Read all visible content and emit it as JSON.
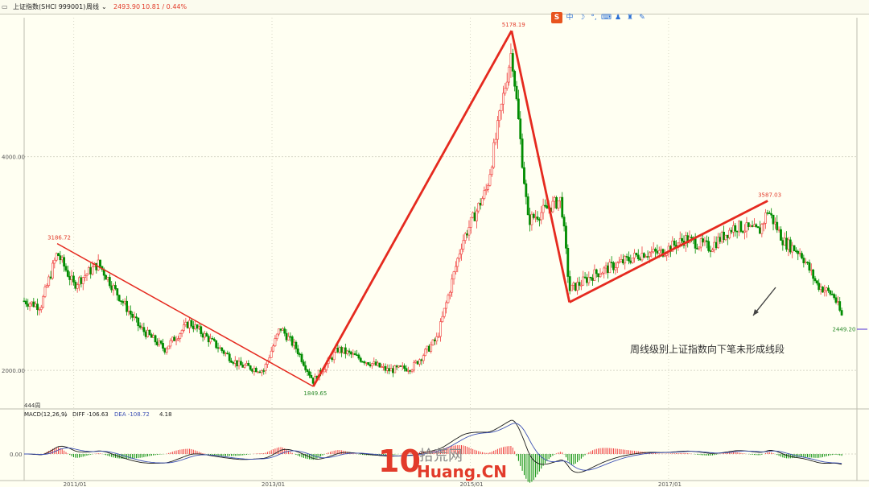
{
  "header": {
    "icon": "window-icon",
    "symbol": "上证指数(SHCI 999001)",
    "period": "周线",
    "last": "2493.90",
    "change": "10.81 / 0.44%"
  },
  "toolbar": {
    "items": [
      {
        "name": "sogou-icon",
        "glyph": "S"
      },
      {
        "name": "chinese-input-icon",
        "glyph": "中"
      },
      {
        "name": "moon-icon",
        "glyph": "☽"
      },
      {
        "name": "punctuation-icon",
        "glyph": "°,"
      },
      {
        "name": "keyboard-icon",
        "glyph": "⌨"
      },
      {
        "name": "user-icon",
        "glyph": "♟"
      },
      {
        "name": "shirt-icon",
        "glyph": "♜"
      },
      {
        "name": "wrench-icon",
        "glyph": "✎"
      }
    ]
  },
  "annotation": "周线级别上证指数向下笔未形成线段",
  "watermark": {
    "number": "10",
    "text1": "拾荒网",
    "text2": "Huang.CN"
  },
  "colors": {
    "up": "#f03c3c",
    "down": "#008c00",
    "stroke": "#e52a1f",
    "diff": "#1a1a1a",
    "dea": "#3c50b4",
    "grid": "#d8d8c8"
  },
  "chart_data": {
    "type": "candlestick",
    "title": "上证指数(SHCI 999001) 周线",
    "x_ticks": [
      "2011/01",
      "2013/01",
      "2015/01",
      "2017/01"
    ],
    "y_ticks": [
      "4000.00",
      "2000.00"
    ],
    "bar_count_label": "444周",
    "extremes": [
      {
        "date": "2010/11",
        "value": "3186.72",
        "type": "high"
      },
      {
        "date": "2013/06",
        "value": "1849.65",
        "type": "low"
      },
      {
        "date": "2015/06",
        "value": "5178.19",
        "type": "high"
      },
      {
        "date": "2016/01",
        "value": null,
        "type": "low"
      },
      {
        "date": "2018/01",
        "value": "3587.03",
        "type": "high"
      },
      {
        "date": "2018/10",
        "value": "2449.20",
        "type": "low"
      }
    ],
    "strokes": [
      {
        "from": "2010/11",
        "to": "2013/06",
        "start": 3186.72,
        "end": 1849.65
      },
      {
        "from": "2013/06",
        "to": "2015/06",
        "start": 1849.65,
        "end": 5178.19
      },
      {
        "from": "2015/06",
        "to": "2016/01",
        "start": 5178.19,
        "end": 2638
      },
      {
        "from": "2016/01",
        "to": "2018/01",
        "start": 2638,
        "end": 3587.03
      }
    ],
    "close_series": [
      [
        "2010/07",
        2650
      ],
      [
        "2010/09",
        2600
      ],
      [
        "2010/11",
        3100
      ],
      [
        "2011/01",
        2800
      ],
      [
        "2011/04",
        3000
      ],
      [
        "2011/06",
        2750
      ],
      [
        "2011/09",
        2400
      ],
      [
        "2011/12",
        2200
      ],
      [
        "2012/03",
        2450
      ],
      [
        "2012/06",
        2250
      ],
      [
        "2012/09",
        2050
      ],
      [
        "2012/12",
        2000
      ],
      [
        "2013/02",
        2400
      ],
      [
        "2013/04",
        2200
      ],
      [
        "2013/06",
        1900
      ],
      [
        "2013/09",
        2200
      ],
      [
        "2013/12",
        2100
      ],
      [
        "2014/03",
        2000
      ],
      [
        "2014/06",
        2030
      ],
      [
        "2014/09",
        2300
      ],
      [
        "2014/12",
        3200
      ],
      [
        "2015/03",
        3700
      ],
      [
        "2015/06",
        5000
      ],
      [
        "2015/08",
        3400
      ],
      [
        "2015/10",
        3500
      ],
      [
        "2015/12",
        3600
      ],
      [
        "2016/01",
        2750
      ],
      [
        "2016/04",
        2900
      ],
      [
        "2016/07",
        3000
      ],
      [
        "2016/10",
        3100
      ],
      [
        "2016/12",
        3100
      ],
      [
        "2017/03",
        3230
      ],
      [
        "2017/06",
        3150
      ],
      [
        "2017/09",
        3350
      ],
      [
        "2017/12",
        3300
      ],
      [
        "2018/01",
        3500
      ],
      [
        "2018/03",
        3200
      ],
      [
        "2018/05",
        3100
      ],
      [
        "2018/07",
        2800
      ],
      [
        "2018/09",
        2700
      ],
      [
        "2018/10",
        2500
      ]
    ],
    "ylim": [
      1700,
      5300
    ],
    "macd": {
      "label": "MACD(12,26,9)",
      "params": [
        12,
        26,
        9
      ],
      "diff_label": "DIFF -106.63",
      "dea_label": "DEA -108.72",
      "macd_label": "4.18",
      "diff": -106.63,
      "dea": -108.72,
      "macd": 4.18,
      "zero_label": "0.00"
    }
  }
}
